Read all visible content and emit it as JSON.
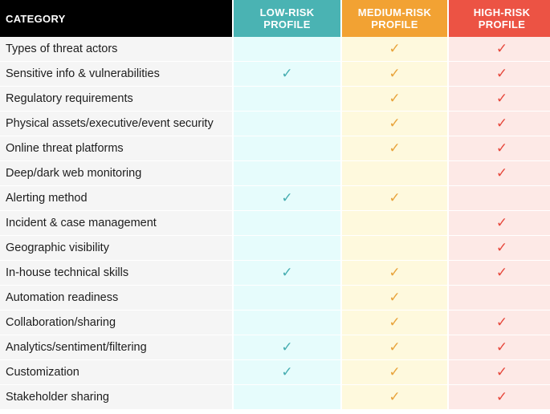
{
  "table": {
    "headers": {
      "category": "CATEGORY",
      "low": "LOW-RISK\nPROFILE",
      "medium": "MEDIUM-RISK\nPROFILE",
      "high": "HIGH-RISK\nPROFILE"
    },
    "check_mark": "✓",
    "colors": {
      "low_header": "#4ab3b3",
      "medium_header": "#f2a233",
      "high_header": "#ec5344",
      "low_cell": "#e6fcfc",
      "medium_cell": "#fef9dd",
      "high_cell": "#fde9e6"
    },
    "rows": [
      {
        "category": "Types of threat actors",
        "low": false,
        "medium": true,
        "high": true
      },
      {
        "category": "Sensitive info & vulnerabilities",
        "low": true,
        "medium": true,
        "high": true
      },
      {
        "category": "Regulatory requirements",
        "low": false,
        "medium": true,
        "high": true
      },
      {
        "category": "Physical assets/executive/event security",
        "low": false,
        "medium": true,
        "high": true
      },
      {
        "category": "Online threat platforms",
        "low": false,
        "medium": true,
        "high": true
      },
      {
        "category": "Deep/dark web monitoring",
        "low": false,
        "medium": false,
        "high": true
      },
      {
        "category": "Alerting method",
        "low": true,
        "medium": true,
        "high": false
      },
      {
        "category": "Incident & case management",
        "low": false,
        "medium": false,
        "high": true
      },
      {
        "category": "Geographic visibility",
        "low": false,
        "medium": false,
        "high": true
      },
      {
        "category": "In-house technical skills",
        "low": true,
        "medium": true,
        "high": true
      },
      {
        "category": "Automation readiness",
        "low": false,
        "medium": true,
        "high": false
      },
      {
        "category": "Collaboration/sharing",
        "low": false,
        "medium": true,
        "high": true
      },
      {
        "category": "Analytics/sentiment/filtering",
        "low": true,
        "medium": true,
        "high": true
      },
      {
        "category": "Customization",
        "low": true,
        "medium": true,
        "high": true
      },
      {
        "category": "Stakeholder sharing",
        "low": false,
        "medium": true,
        "high": true
      }
    ]
  }
}
